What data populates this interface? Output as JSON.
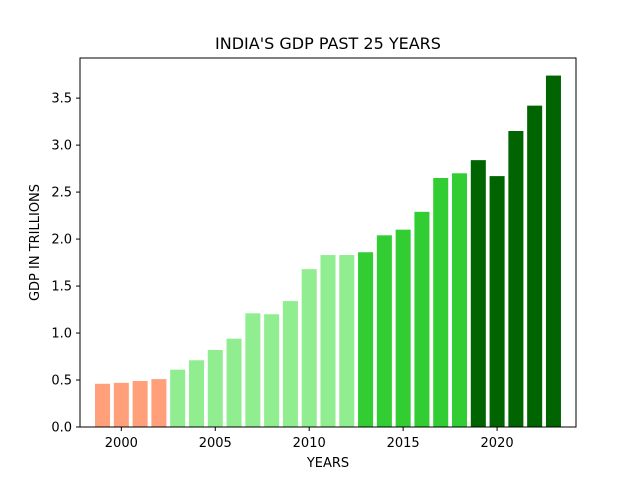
{
  "chart_data": {
    "type": "bar",
    "title": "INDIA'S GDP PAST 25 YEARS",
    "xlabel": "YEARS",
    "ylabel": "GDP IN TRILLIONS",
    "x": [
      1999,
      2000,
      2001,
      2002,
      2003,
      2004,
      2005,
      2006,
      2007,
      2008,
      2009,
      2010,
      2011,
      2012,
      2013,
      2014,
      2015,
      2016,
      2017,
      2018,
      2019,
      2020,
      2021,
      2022,
      2023
    ],
    "values": [
      0.46,
      0.47,
      0.49,
      0.51,
      0.61,
      0.71,
      0.82,
      0.94,
      1.21,
      1.2,
      1.34,
      1.68,
      1.83,
      1.83,
      1.86,
      2.04,
      2.1,
      2.29,
      2.65,
      2.7,
      2.84,
      2.67,
      3.15,
      3.42,
      3.74
    ],
    "bar_colors": [
      "#ffa07a",
      "#ffa07a",
      "#ffa07a",
      "#ffa07a",
      "#90ee90",
      "#90ee90",
      "#90ee90",
      "#90ee90",
      "#90ee90",
      "#90ee90",
      "#90ee90",
      "#90ee90",
      "#90ee90",
      "#90ee90",
      "#32cd32",
      "#32cd32",
      "#32cd32",
      "#32cd32",
      "#32cd32",
      "#32cd32",
      "#006400",
      "#006400",
      "#006400",
      "#006400",
      "#006400"
    ],
    "xticks": [
      2000,
      2005,
      2010,
      2015,
      2020
    ],
    "yticks": [
      0.0,
      0.5,
      1.0,
      1.5,
      2.0,
      2.5,
      3.0,
      3.5
    ],
    "xlim": [
      1997.8,
      2024.2
    ],
    "ylim": [
      0,
      3.927
    ],
    "grid": false,
    "legend": "none"
  }
}
